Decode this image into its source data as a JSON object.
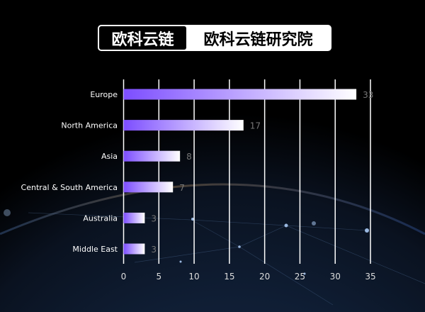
{
  "header": {
    "brand": "欧科云链",
    "subtitle": "欧科云链研究院"
  },
  "colors": {
    "bar_start": "#7c4dff",
    "bar_end": "#ffffff",
    "grid": "#ffffff",
    "background": "#000000"
  },
  "chart_data": {
    "type": "bar",
    "orientation": "horizontal",
    "categories": [
      "Europe",
      "North America",
      "Asia",
      "Central & South America",
      "Australia",
      "Middle East"
    ],
    "values": [
      33,
      17,
      8,
      7,
      3,
      3
    ],
    "xlim": [
      0,
      35
    ],
    "xticks": [
      0,
      5,
      10,
      15,
      20,
      25,
      30,
      35
    ],
    "grid": "vertical",
    "title": "",
    "xlabel": "",
    "ylabel": ""
  }
}
